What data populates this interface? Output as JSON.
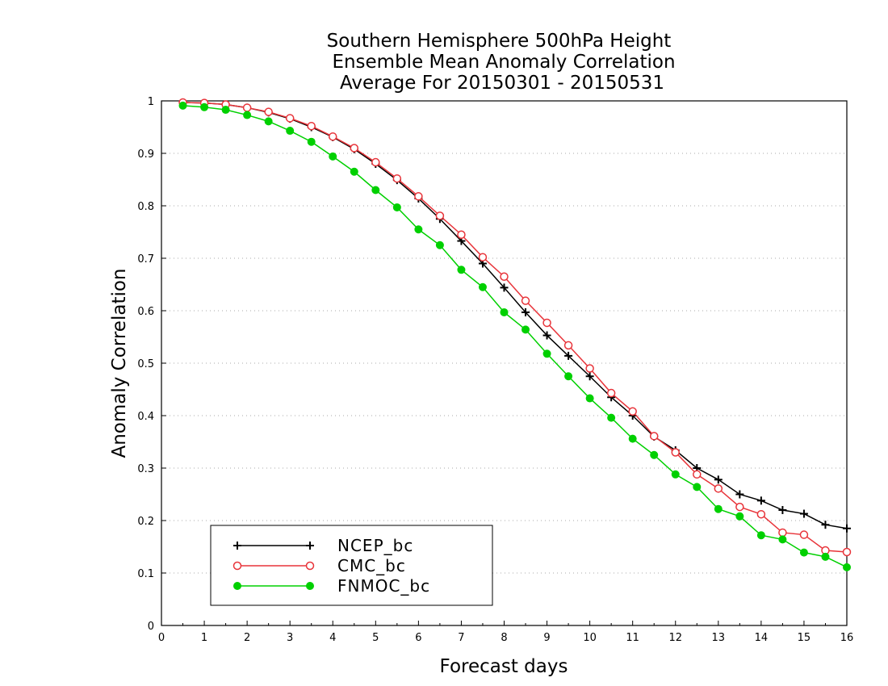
{
  "chart_data": {
    "type": "line",
    "title_lines": [
      "Southern Hemisphere 500hPa Height",
      "Ensemble Mean Anomaly Correlation",
      "Average For 20150301 - 20150531"
    ],
    "xlabel": "Forecast days",
    "ylabel": "Anomaly Correlation",
    "xlim": [
      0,
      16
    ],
    "ylim": [
      0,
      1
    ],
    "x_ticks": [
      "0",
      "1",
      "2",
      "3",
      "4",
      "5",
      "6",
      "7",
      "8",
      "9",
      "10",
      "11",
      "12",
      "13",
      "14",
      "15",
      "16"
    ],
    "y_ticks": [
      "0",
      "0.1",
      "0.2",
      "0.3",
      "0.4",
      "0.5",
      "0.6",
      "0.7",
      "0.8",
      "0.9",
      "1"
    ],
    "grid": "horizontal dotted",
    "legend_position": "bottom-left",
    "x": [
      0.5,
      1,
      1.5,
      2,
      2.5,
      3,
      3.5,
      4,
      4.5,
      5,
      5.5,
      6,
      6.5,
      7,
      7.5,
      8,
      8.5,
      9,
      9.5,
      10,
      10.5,
      11,
      11.5,
      12,
      12.5,
      13,
      13.5,
      14,
      14.5,
      15,
      15.5,
      16
    ],
    "series": [
      {
        "name": "NCEP_bc",
        "color": "#000000",
        "marker": "plus",
        "values": [
          0.997,
          0.996,
          0.993,
          0.987,
          0.978,
          0.966,
          0.95,
          0.931,
          0.908,
          0.88,
          0.849,
          0.814,
          0.775,
          0.733,
          0.69,
          0.644,
          0.597,
          0.553,
          0.514,
          0.475,
          0.435,
          0.4,
          0.36,
          0.334,
          0.3,
          0.278,
          0.25,
          0.238,
          0.22,
          0.213,
          0.192,
          0.185
        ]
      },
      {
        "name": "CMC_bc",
        "color": "#e8343a",
        "marker": "open-circle",
        "values": [
          0.997,
          0.996,
          0.993,
          0.987,
          0.979,
          0.967,
          0.952,
          0.932,
          0.91,
          0.883,
          0.852,
          0.818,
          0.781,
          0.745,
          0.702,
          0.665,
          0.619,
          0.577,
          0.534,
          0.49,
          0.443,
          0.408,
          0.361,
          0.33,
          0.288,
          0.261,
          0.226,
          0.212,
          0.177,
          0.173,
          0.143,
          0.14
        ]
      },
      {
        "name": "FNMOC_bc",
        "color": "#00d000",
        "marker": "filled-circle",
        "values": [
          0.991,
          0.988,
          0.983,
          0.973,
          0.961,
          0.943,
          0.922,
          0.894,
          0.865,
          0.83,
          0.797,
          0.755,
          0.725,
          0.678,
          0.645,
          0.597,
          0.564,
          0.518,
          0.475,
          0.433,
          0.396,
          0.356,
          0.325,
          0.288,
          0.264,
          0.222,
          0.208,
          0.172,
          0.164,
          0.139,
          0.131,
          0.111
        ]
      }
    ]
  }
}
